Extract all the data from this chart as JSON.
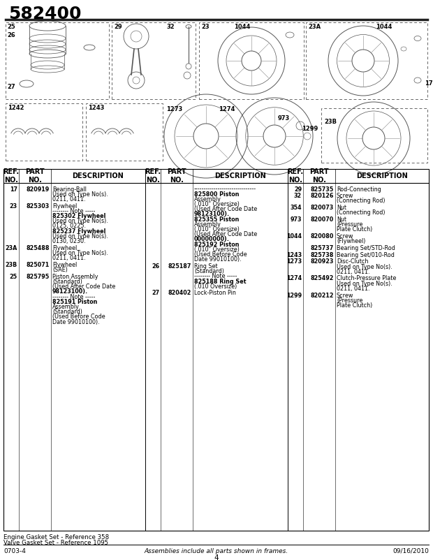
{
  "title": "582400",
  "bg_color": "#ffffff",
  "footer_left": "0703-4",
  "footer_center": "Assemblies include all parts shown in frames.",
  "footer_right": "09/16/2010",
  "footer_note1": "Engine Gasket Set - Reference 358",
  "footer_note2": "Valve Gasket Set - Reference 1095",
  "page_number": "4",
  "col1_entries": [
    {
      "ref": "17",
      "part": "820919",
      "desc": "Bearing-Ball\nUsed on Type No(s).\n0211, 0411."
    },
    {
      "ref": "23",
      "part": "825303",
      "desc": "Flywheel\n-------- Note -----\n825302 Flywheel\nUsed on Type No(s).\n0125, 0225.\n825237 Flywheel\nUsed on Type No(s).\n0130, 0230."
    },
    {
      "ref": "23A",
      "part": "825488",
      "desc": "Flywheel\nUsed on Type No(s).\n0211, 0411."
    },
    {
      "ref": "23B",
      "part": "825071",
      "desc": "Flywheel\n(SAE)"
    },
    {
      "ref": "25",
      "part": "825795",
      "desc": "Piston Assembly\n(Standard)\n(Used After Code Date\n98123100).\n-------- Note -----\n825191 Piston\nAssembly\n(Standard)\n(Used Before Code\nDate 99010100)."
    }
  ],
  "col2_entries": [
    {
      "ref": "",
      "part": "",
      "desc": "-------------------------------\n825800 Piston\nAssembly\n(.010\" Oversize)\n(Used After Code Date\n98123100).\n825355 Piston\nAssembly\n(.010\" Oversize)\n(Used After Code Date\n00000000).\n825192 Piston\n(.010\" Oversize)\n(Used Before Code\nDate 99010100)."
    },
    {
      "ref": "26",
      "part": "825187",
      "desc": "Ring Set\n(Standard)\n-------- Note -----\n825188 Ring Set\n(.010 Oversize)"
    },
    {
      "ref": "27",
      "part": "820402",
      "desc": "Lock-Piston Pin"
    }
  ],
  "col3_entries": [
    {
      "ref": "29",
      "part": "825735",
      "desc": "Rod-Connecting"
    },
    {
      "ref": "32",
      "part": "820126",
      "desc": "Screw\n(Connecting Rod)"
    },
    {
      "ref": "354",
      "part": "820073",
      "desc": "Nut\n(Connecting Rod)"
    },
    {
      "ref": "973",
      "part": "820070",
      "desc": "Nut\n(Pressure\nPlate Clutch)"
    },
    {
      "ref": "1044",
      "part": "820080",
      "desc": "Screw\n(Flywheel)"
    },
    {
      "ref": "",
      "part": "825737",
      "desc": "Bearing Set/STD-Rod"
    },
    {
      "ref": "1243",
      "part": "825738",
      "desc": "Bearing Set/010-Rod"
    },
    {
      "ref": "1273",
      "part": "820923",
      "desc": "Disc-Clutch\nUsed on Type No(s).\n0211, 0411."
    },
    {
      "ref": "1274",
      "part": "825492",
      "desc": "Clutch-Pressure Plate\nUsed on Type No(s).\n0211, 0411."
    },
    {
      "ref": "1299",
      "part": "820212",
      "desc": "Screw\n(Pressure\nPlate Clutch)"
    }
  ]
}
